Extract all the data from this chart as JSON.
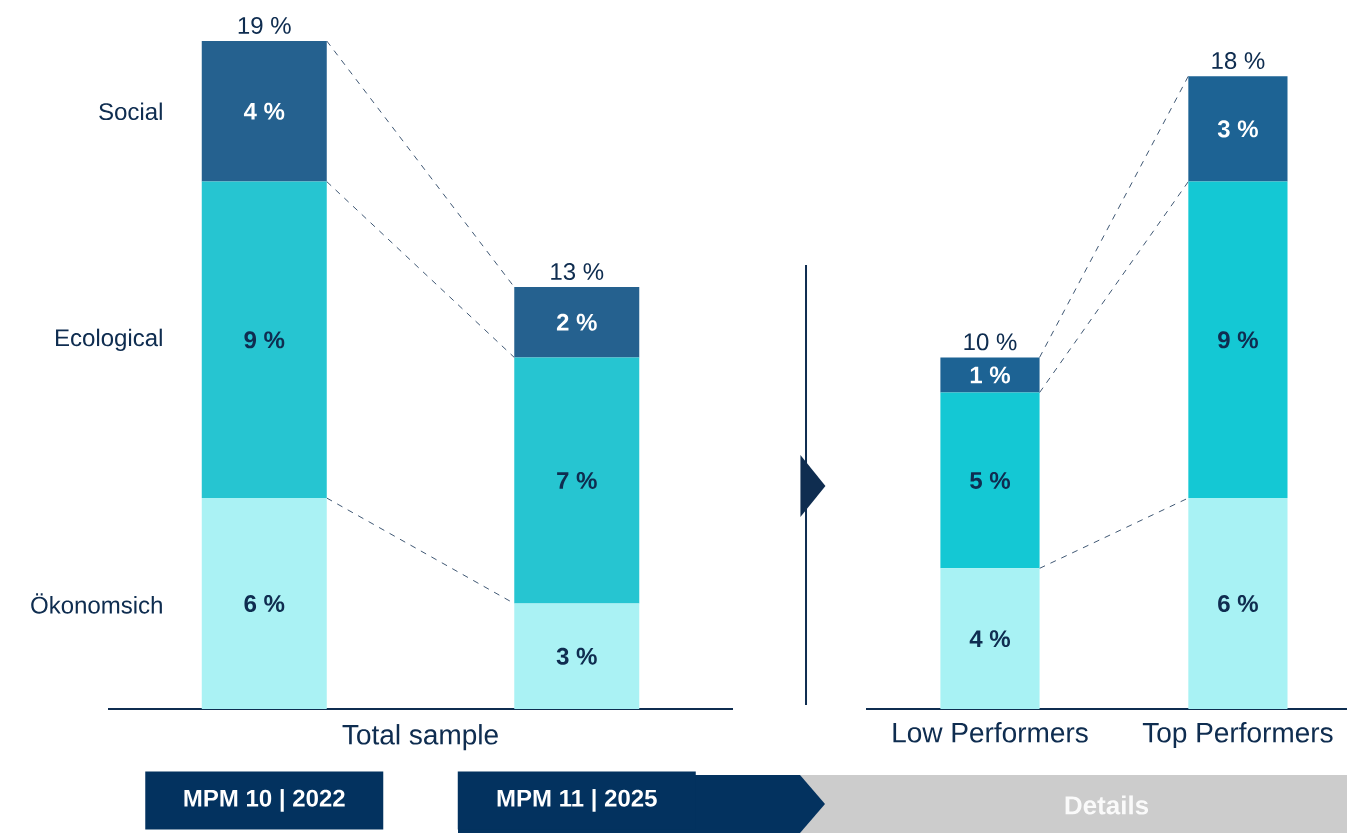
{
  "chart_data": [
    {
      "type": "bar",
      "stacked": true,
      "xlabel": "Total sample",
      "categories": [
        "MPM 10 | 2022",
        "MPM 11 | 2025"
      ],
      "series": [
        {
          "name": "Ökonomsich",
          "color": "#aaf2f4",
          "values": [
            6,
            3
          ],
          "value_labels": [
            "6 %",
            "3 %"
          ]
        },
        {
          "name": "Ecological",
          "color": "#26c5d1",
          "values": [
            9,
            7
          ],
          "value_labels": [
            "9 %",
            "7 %"
          ]
        },
        {
          "name": "Social",
          "color": "#25618f",
          "values": [
            4,
            2
          ],
          "value_labels": [
            "4 %",
            "2 %"
          ]
        }
      ],
      "totals": [
        "19 %",
        "13 %"
      ]
    },
    {
      "type": "bar",
      "stacked": true,
      "categories": [
        "Low Performers",
        "Top Performers"
      ],
      "series": [
        {
          "color": "#a8f2f4",
          "values": [
            4,
            6
          ],
          "value_labels": [
            "4 %",
            "6 %"
          ]
        },
        {
          "color": "#14c8d4",
          "values": [
            5,
            9
          ],
          "value_labels": [
            "5 %",
            "9 %"
          ]
        },
        {
          "color": "#1d6394",
          "values": [
            1,
            3
          ],
          "value_labels": [
            "1 %",
            "3 %"
          ]
        }
      ],
      "totals": [
        "10 %",
        "18 %"
      ],
      "annotations": [
        "Details"
      ]
    }
  ]
}
